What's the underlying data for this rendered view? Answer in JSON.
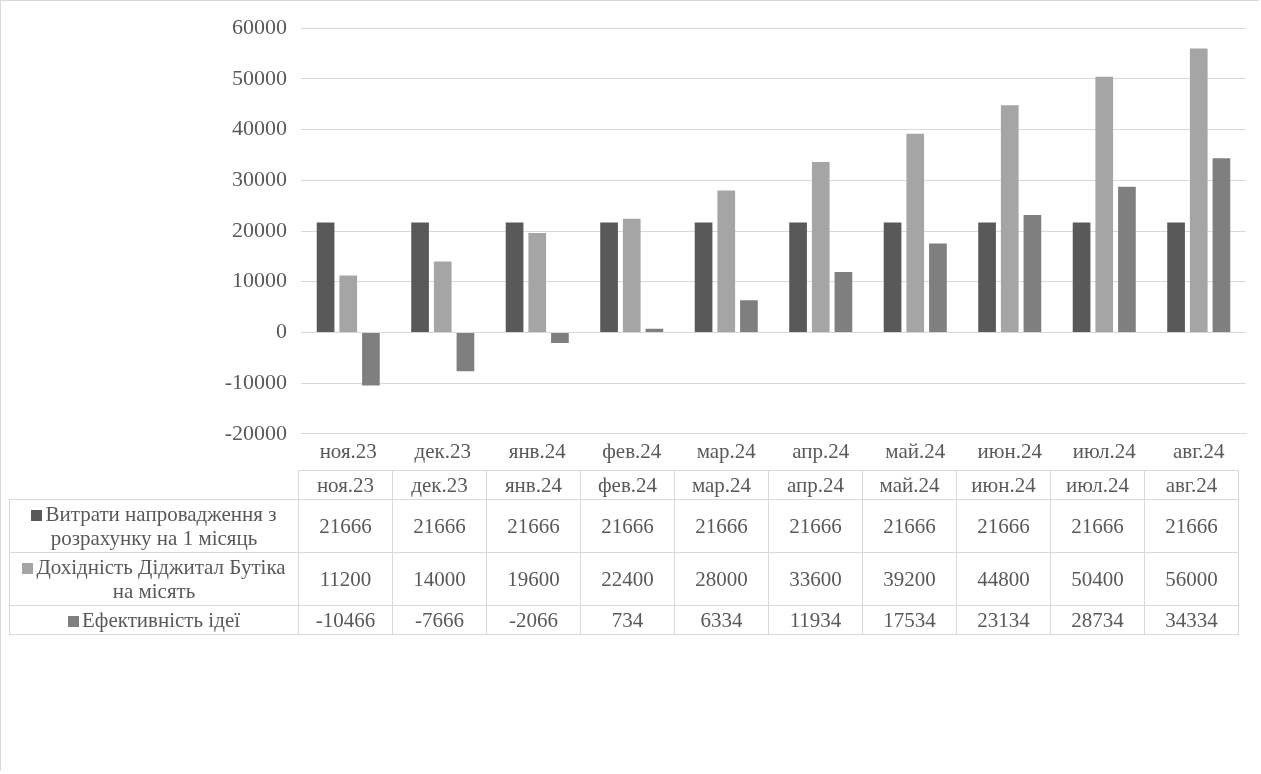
{
  "chart_data": {
    "type": "bar",
    "categories": [
      "ноя.23",
      "дек.23",
      "янв.24",
      "фев.24",
      "мар.24",
      "апр.24",
      "май.24",
      "июн.24",
      "июл.24",
      "авг.24"
    ],
    "series": [
      {
        "name": "Витрати напровадження з розрахунку на 1 місяць",
        "color": "#595959",
        "values": [
          21666,
          21666,
          21666,
          21666,
          21666,
          21666,
          21666,
          21666,
          21666,
          21666
        ]
      },
      {
        "name": "Дохідність Діджитал Бутіка на місять",
        "color": "#a5a5a5",
        "values": [
          11200,
          14000,
          19600,
          22400,
          28000,
          33600,
          39200,
          44800,
          50400,
          56000
        ]
      },
      {
        "name": "Ефективність ідеї",
        "color": "#7f7f7f",
        "values": [
          -10466,
          -7666,
          -2066,
          734,
          6334,
          11934,
          17534,
          23134,
          28734,
          34334
        ]
      }
    ],
    "ylim": [
      -20000,
      60000
    ],
    "yticks": [
      -20000,
      -10000,
      0,
      10000,
      20000,
      30000,
      40000,
      50000,
      60000
    ],
    "grid": "y",
    "legend": "bottom",
    "data_labels": true
  }
}
